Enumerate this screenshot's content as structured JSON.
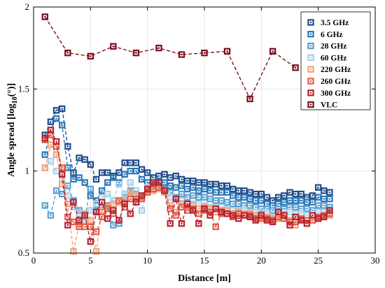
{
  "chart_data": {
    "type": "line",
    "xlabel": "Distance [m]",
    "ylabel_main": "Angle spread [log",
    "ylabel_sub": "10",
    "ylabel_tail": "(°)]",
    "xlim": [
      0,
      30
    ],
    "ylim": [
      0.5,
      2
    ],
    "xticks": [
      0,
      5,
      10,
      15,
      20,
      25,
      30
    ],
    "xtick_labels": [
      "0",
      "5",
      "10",
      "15",
      "20",
      "25",
      "30"
    ],
    "yticks": [
      0.5,
      1,
      1.5,
      2
    ],
    "ytick_labels": [
      "0.5",
      "1",
      "1.5",
      "2"
    ],
    "grid": true,
    "legend_position": "top-right",
    "series": [
      {
        "name": "3.5 GHz",
        "color": "#1f4e8c",
        "x": [
          1,
          1.5,
          2,
          2.5,
          3,
          3.5,
          4,
          4.5,
          5,
          5.5,
          6,
          6.5,
          7,
          7.5,
          8,
          8.5,
          9,
          9.5,
          10,
          10.5,
          11,
          11.5,
          12,
          12.5,
          13,
          13.5,
          14,
          14.5,
          15,
          15.5,
          16,
          16.5,
          17,
          17.5,
          18,
          18.5,
          19,
          19.5,
          20,
          20.5,
          21,
          21.5,
          22,
          22.5,
          23,
          23.5,
          24,
          24.5,
          25,
          25.5,
          26
        ],
        "y": [
          1.22,
          1.3,
          1.37,
          1.38,
          1.15,
          0.99,
          1.08,
          1.07,
          1.04,
          0.95,
          0.99,
          0.99,
          0.97,
          0.99,
          1.05,
          1.05,
          1.05,
          1.01,
          0.99,
          0.96,
          0.97,
          0.98,
          0.96,
          0.97,
          0.95,
          0.94,
          0.94,
          0.93,
          0.93,
          0.92,
          0.92,
          0.91,
          0.91,
          0.89,
          0.88,
          0.88,
          0.87,
          0.86,
          0.86,
          0.84,
          0.82,
          0.84,
          0.85,
          0.87,
          0.86,
          0.86,
          0.84,
          0.85,
          0.9,
          0.88,
          0.87
        ]
      },
      {
        "name": "6 GHz",
        "color": "#2b77b8",
        "x": [
          1,
          1.5,
          2,
          2.5,
          3,
          3.5,
          4,
          4.5,
          5,
          5.5,
          6,
          6.5,
          7,
          7.5,
          8,
          8.5,
          9,
          9.5,
          10,
          10.5,
          11,
          11.5,
          12,
          12.5,
          13,
          13.5,
          14,
          14.5,
          15,
          15.5,
          16,
          16.5,
          17,
          17.5,
          18,
          18.5,
          19,
          19.5,
          20,
          20.5,
          21,
          21.5,
          22,
          22.5,
          23,
          23.5,
          24,
          24.5,
          25,
          25.5,
          26
        ],
        "y": [
          1.1,
          1.25,
          1.32,
          1.28,
          1.02,
          0.95,
          0.96,
          0.93,
          0.85,
          0.82,
          0.88,
          0.93,
          0.96,
          0.93,
          0.98,
          1.0,
          1.0,
          0.95,
          0.93,
          0.91,
          0.94,
          0.93,
          0.91,
          0.9,
          0.91,
          0.89,
          0.9,
          0.88,
          0.89,
          0.88,
          0.87,
          0.87,
          0.87,
          0.85,
          0.84,
          0.84,
          0.83,
          0.82,
          0.82,
          0.8,
          0.79,
          0.8,
          0.81,
          0.82,
          0.82,
          0.82,
          0.81,
          0.81,
          0.84,
          0.83,
          0.83
        ]
      },
      {
        "name": "28 GHz",
        "color": "#5a9fd0",
        "x": [
          1,
          1.5,
          2,
          2.5,
          3,
          3.5,
          4,
          4.5,
          5,
          5.5,
          6,
          6.5,
          7,
          7.5,
          8,
          8.5,
          9,
          9.5,
          10,
          10.5,
          11,
          11.5,
          12,
          12.5,
          13,
          13.5,
          14,
          14.5,
          15,
          15.5,
          16,
          16.5,
          17,
          17.5,
          18,
          18.5,
          19,
          19.5,
          20,
          20.5,
          21,
          21.5,
          22,
          22.5,
          23,
          23.5,
          24,
          24.5,
          25,
          25.5,
          26
        ],
        "y": [
          0.79,
          0.73,
          0.88,
          0.86,
          0.91,
          0.82,
          0.76,
          0.72,
          0.89,
          0.76,
          0.78,
          0.79,
          0.67,
          0.68,
          0.84,
          0.88,
          0.86,
          0.85,
          0.9,
          0.92,
          0.9,
          0.89,
          0.87,
          0.84,
          0.86,
          0.84,
          0.85,
          0.84,
          0.84,
          0.83,
          0.82,
          0.82,
          0.81,
          0.8,
          0.8,
          0.79,
          0.79,
          0.78,
          0.77,
          0.77,
          0.76,
          0.77,
          0.77,
          0.78,
          0.78,
          0.77,
          0.77,
          0.76,
          0.79,
          0.79,
          0.78
        ]
      },
      {
        "name": "60 GHz",
        "color": "#a8d0ea",
        "x": [
          1,
          1.5,
          2,
          2.5,
          3,
          3.5,
          4,
          4.5,
          5,
          5.5,
          6,
          6.5,
          7,
          7.5,
          8,
          8.5,
          9,
          9.5,
          10,
          10.5,
          11,
          11.5,
          12,
          12.5,
          13,
          13.5,
          14,
          14.5,
          15,
          15.5,
          16,
          16.5,
          17,
          17.5,
          18,
          18.5,
          19,
          19.5,
          20,
          20.5,
          21,
          21.5,
          22,
          22.5,
          23,
          23.5,
          24,
          24.5,
          25,
          25.5,
          26
        ],
        "y": [
          1.02,
          1.06,
          1.0,
          0.95,
          0.85,
          0.78,
          0.74,
          0.7,
          0.76,
          0.8,
          0.84,
          0.86,
          0.82,
          0.92,
          0.86,
          0.93,
          0.88,
          0.76,
          0.9,
          0.89,
          0.89,
          0.87,
          0.84,
          0.83,
          0.82,
          0.8,
          0.8,
          0.8,
          0.79,
          0.78,
          0.78,
          0.78,
          0.77,
          0.76,
          0.76,
          0.76,
          0.75,
          0.75,
          0.75,
          0.74,
          0.72,
          0.74,
          0.74,
          0.75,
          0.74,
          0.74,
          0.73,
          0.73,
          0.75,
          0.75,
          0.76
        ]
      },
      {
        "name": "220 GHz",
        "color": "#f4a27a",
        "x": [
          1,
          1.5,
          2,
          2.5,
          3,
          3.5,
          4,
          4.5,
          5,
          5.5,
          6,
          6.5,
          7,
          7.5,
          8,
          8.5,
          9,
          9.5,
          10,
          10.5,
          11,
          11.5,
          12,
          12.5,
          13,
          13.5,
          14,
          14.5,
          15,
          15.5,
          16,
          16.5,
          17,
          17.5,
          18,
          18.5,
          19,
          19.5,
          20,
          20.5,
          21,
          21.5,
          22,
          22.5,
          23,
          23.5,
          24,
          24.5,
          25,
          25.5,
          26
        ],
        "y": [
          1.02,
          1.16,
          1.1,
          0.92,
          0.8,
          0.51,
          0.68,
          0.74,
          0.7,
          0.51,
          0.76,
          0.78,
          0.8,
          0.81,
          0.82,
          0.87,
          0.85,
          0.84,
          0.88,
          0.88,
          0.89,
          0.87,
          0.79,
          0.75,
          0.8,
          0.78,
          0.79,
          0.77,
          0.78,
          0.77,
          0.75,
          0.76,
          0.76,
          0.74,
          0.75,
          0.74,
          0.74,
          0.73,
          0.72,
          0.72,
          0.71,
          0.71,
          0.71,
          0.7,
          0.67,
          0.71,
          0.7,
          0.7,
          0.72,
          0.72,
          0.73
        ]
      },
      {
        "name": "260 GHz",
        "color": "#de5e4a",
        "x": [
          1,
          1.5,
          2,
          2.5,
          3,
          3.5,
          4,
          4.5,
          5,
          5.5,
          6,
          6.5,
          7,
          7.5,
          8,
          8.5,
          9,
          9.5,
          10,
          10.5,
          11,
          11.5,
          12,
          12.5,
          13,
          13.5,
          14,
          14.5,
          15,
          15.5,
          16,
          16.5,
          17,
          17.5,
          18,
          18.5,
          19,
          19.5,
          20,
          20.5,
          21,
          21.5,
          22,
          22.5,
          23,
          23.5,
          24,
          24.5,
          25,
          25.5,
          26
        ],
        "y": [
          1.19,
          1.22,
          1.15,
          1.02,
          0.72,
          0.69,
          0.66,
          0.66,
          0.66,
          0.63,
          0.72,
          0.77,
          0.74,
          0.82,
          0.78,
          0.83,
          0.83,
          0.83,
          0.87,
          0.89,
          0.9,
          0.88,
          0.77,
          0.73,
          0.78,
          0.76,
          0.77,
          0.74,
          0.76,
          0.75,
          0.66,
          0.74,
          0.74,
          0.72,
          0.74,
          0.73,
          0.73,
          0.71,
          0.71,
          0.71,
          0.7,
          0.72,
          0.71,
          0.69,
          0.69,
          0.71,
          0.7,
          0.7,
          0.72,
          0.73,
          0.74
        ]
      },
      {
        "name": "300 GHz",
        "color": "#b8222e",
        "x": [
          1,
          1.5,
          2,
          2.5,
          3,
          3.5,
          4,
          4.5,
          5,
          5.5,
          6,
          6.5,
          7,
          7.5,
          8,
          8.5,
          9,
          9.5,
          10,
          10.5,
          11,
          11.5,
          12,
          12.5,
          13,
          13.5,
          14,
          14.5,
          15,
          15.5,
          16,
          16.5,
          17,
          17.5,
          18,
          18.5,
          19,
          19.5,
          20,
          20.5,
          21,
          21.5,
          22,
          22.5,
          23,
          23.5,
          24,
          24.5,
          25,
          25.5,
          26
        ],
        "y": [
          1.2,
          1.25,
          1.18,
          0.98,
          0.67,
          0.81,
          0.7,
          0.73,
          0.57,
          0.75,
          0.81,
          0.71,
          0.76,
          0.7,
          0.8,
          0.74,
          0.81,
          0.85,
          0.89,
          0.93,
          0.93,
          0.88,
          0.68,
          0.83,
          0.68,
          0.8,
          0.76,
          0.68,
          0.77,
          0.73,
          0.77,
          0.75,
          0.74,
          0.73,
          0.71,
          0.73,
          0.72,
          0.7,
          0.73,
          0.7,
          0.69,
          0.75,
          0.73,
          0.67,
          0.72,
          0.7,
          0.68,
          0.73,
          0.71,
          0.72,
          0.76
        ]
      },
      {
        "name": "VLC",
        "color": "#7a0f1e",
        "x": [
          1,
          3,
          5,
          7,
          9,
          11,
          13,
          15,
          17,
          19,
          21,
          23
        ],
        "y": [
          1.94,
          1.72,
          1.7,
          1.76,
          1.72,
          1.75,
          1.71,
          1.72,
          1.73,
          1.44,
          1.73,
          1.63
        ]
      }
    ]
  }
}
